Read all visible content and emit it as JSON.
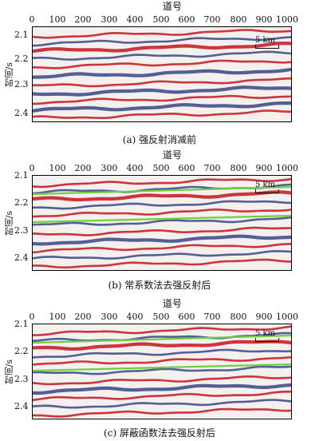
{
  "panels": [
    {
      "id": "a",
      "xlabel": "道号",
      "ylabel": "时间/s",
      "xticks": [
        "0",
        "100",
        "200",
        "300",
        "400",
        "500",
        "600",
        "700",
        "800",
        "900",
        "1000"
      ],
      "yticks": [
        "2.1",
        "2.2",
        "2.3",
        "2.4"
      ],
      "scale": "5 km",
      "caption": "(a) 强反射消减前",
      "green_lines": false
    },
    {
      "id": "b",
      "xlabel": "道号",
      "ylabel": "时间/s",
      "xticks": [
        "0",
        "100",
        "200",
        "300",
        "400",
        "500",
        "600",
        "700",
        "800",
        "900",
        "1000"
      ],
      "yticks": [
        "2.1",
        "2.2",
        "2.3",
        "2.4"
      ],
      "scale": "5 km",
      "caption": "(b) 常系数法去强反射后",
      "green_lines": true
    },
    {
      "id": "c",
      "xlabel": "道号",
      "ylabel": "时间/s",
      "xticks": [
        "0",
        "100",
        "200",
        "300",
        "400",
        "500",
        "600",
        "700",
        "800",
        "900",
        "1000"
      ],
      "yticks": [
        "2.1",
        "2.2",
        "2.3",
        "2.4"
      ],
      "scale": "5 km",
      "caption": "(c) 屏蔽函数法去强反射后",
      "green_lines": true
    }
  ],
  "colors": {
    "positive": "#c8202a",
    "negative": "#1e2f78",
    "horizon": "#6fcf3f",
    "background": "#f4f0ee"
  }
}
